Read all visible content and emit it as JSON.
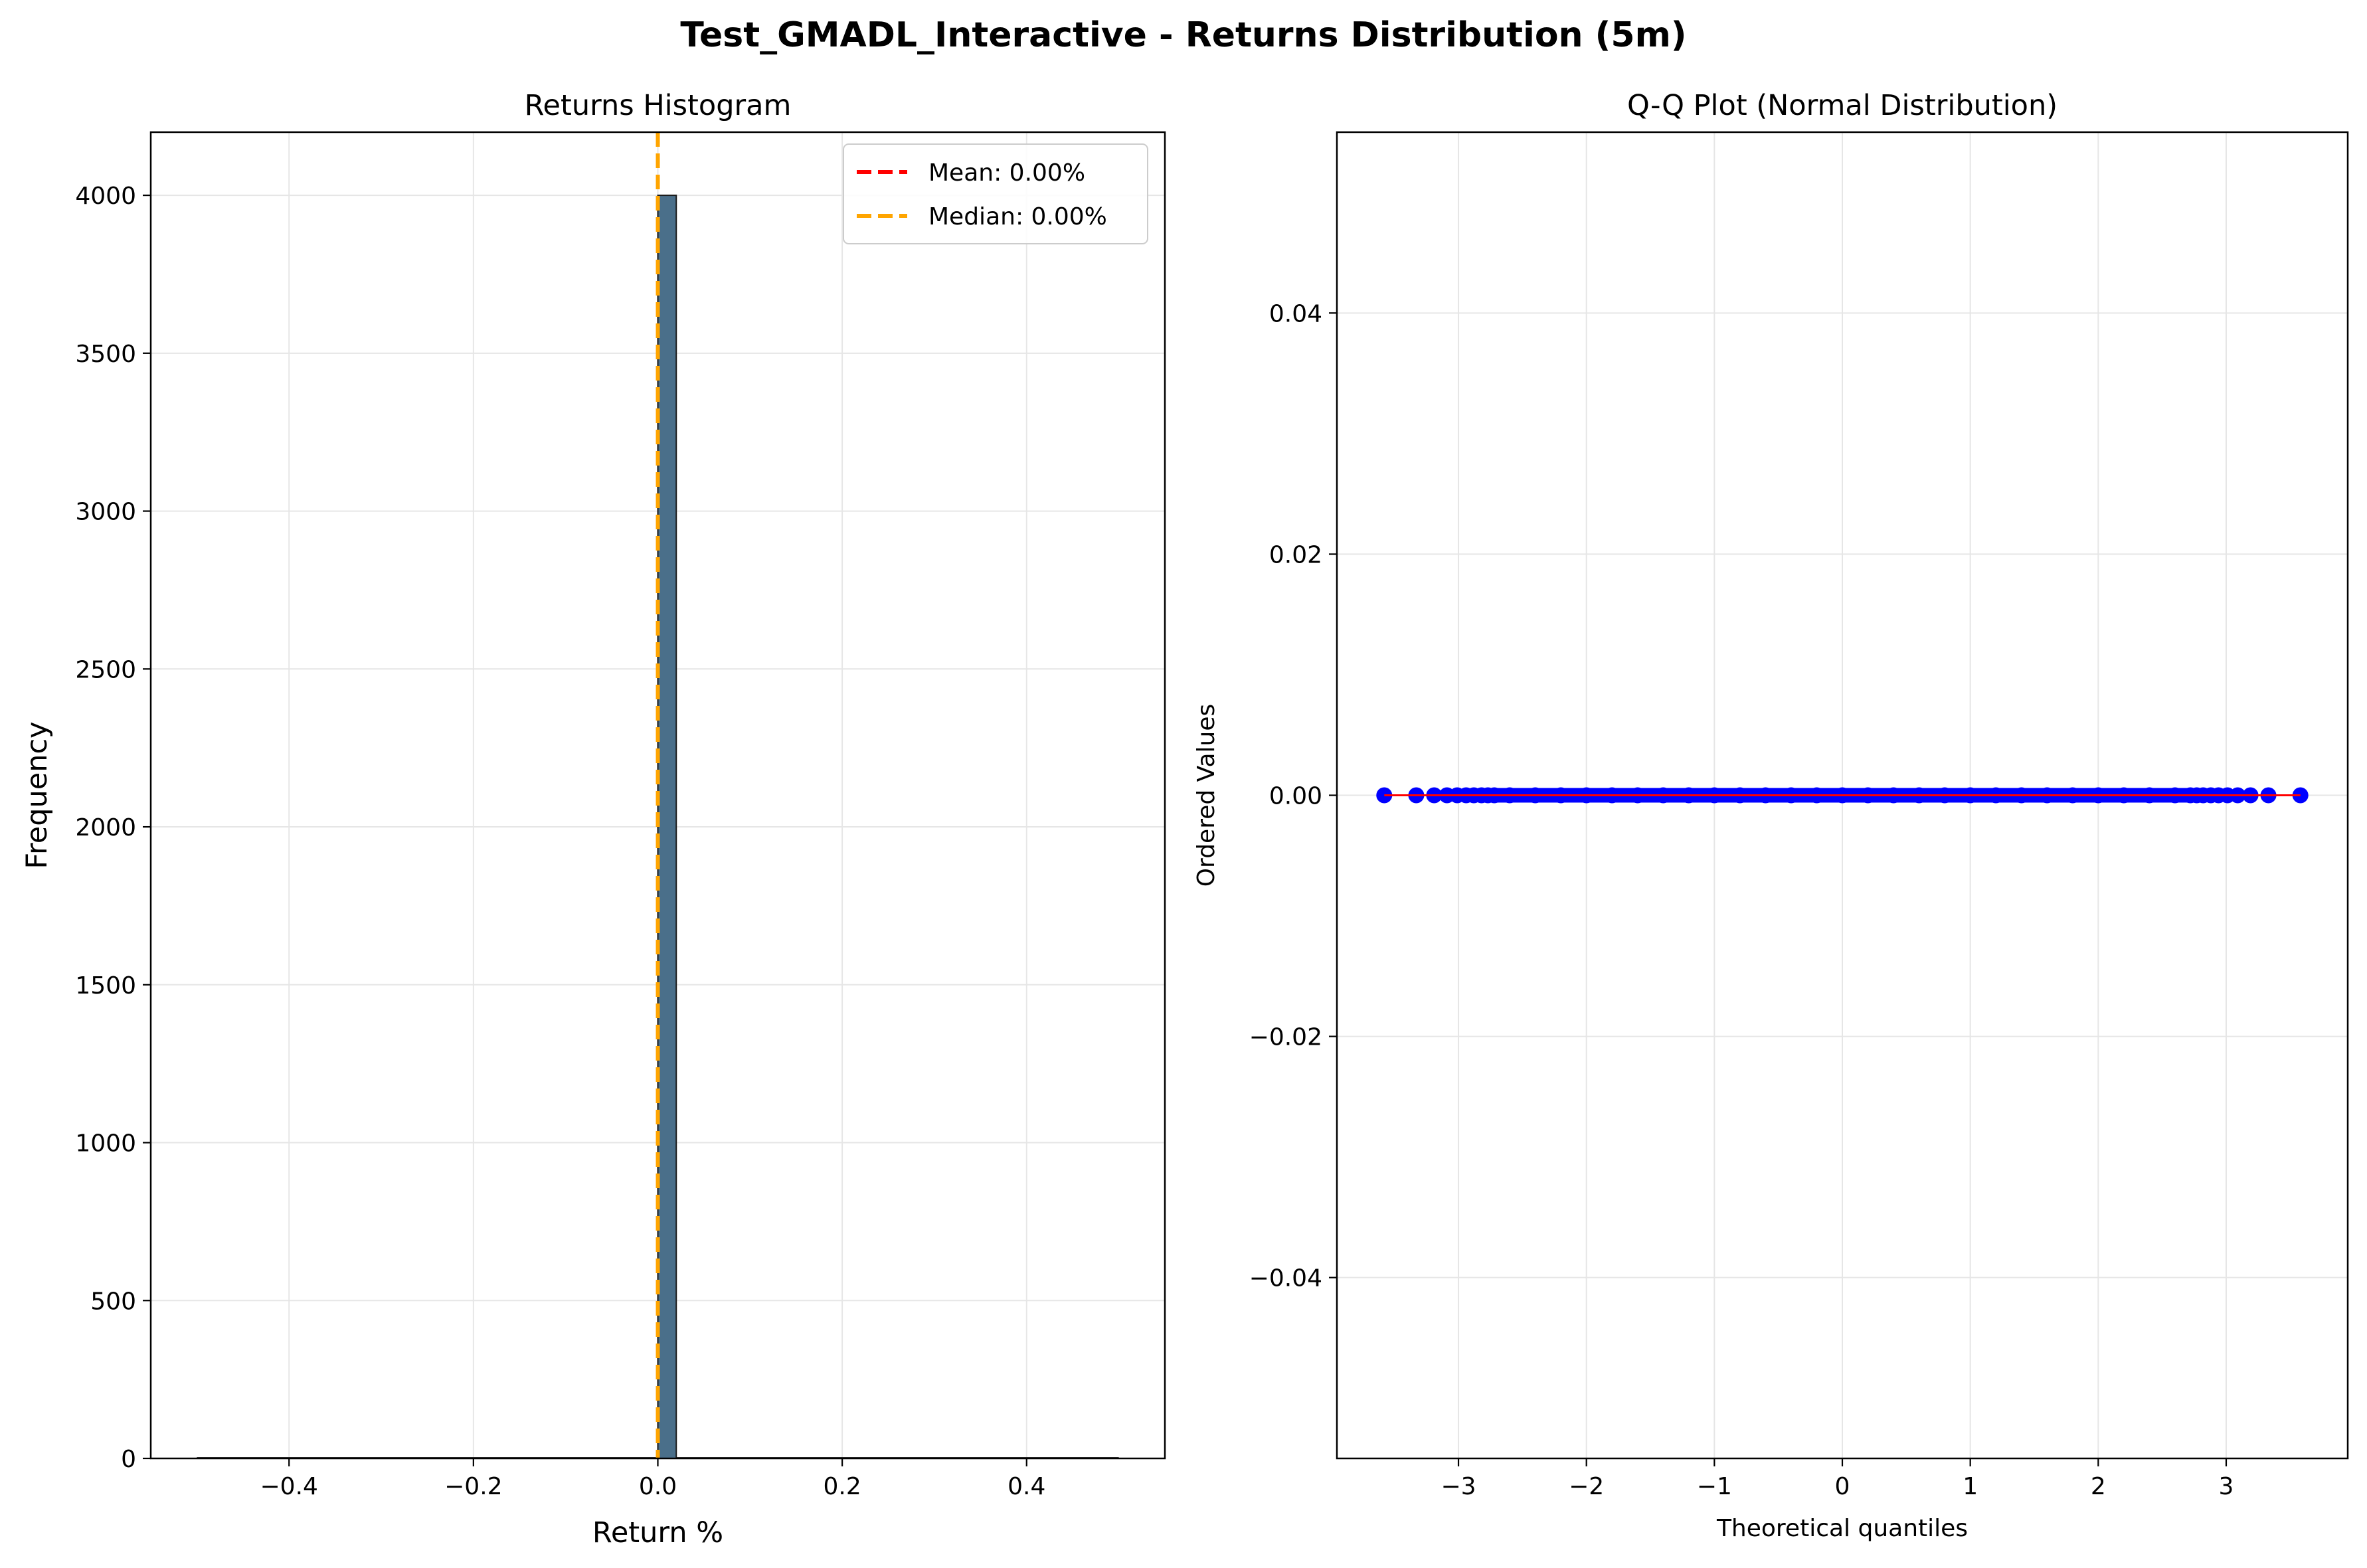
{
  "figure": {
    "title": "Test_GMADL_Interactive - Returns Distribution (5m)"
  },
  "chart_data": [
    {
      "type": "bar",
      "title": "Returns Histogram",
      "xlabel": "Return %",
      "ylabel": "Frequency",
      "xlim": [
        -0.55,
        0.55
      ],
      "ylim": [
        0,
        4200
      ],
      "xticks": [
        -0.4,
        -0.2,
        0.0,
        0.2,
        0.4
      ],
      "xtick_labels": [
        "−0.4",
        "−0.2",
        "0.0",
        "0.2",
        "0.4"
      ],
      "yticks": [
        0,
        500,
        1000,
        1500,
        2000,
        2500,
        3000,
        3500,
        4000
      ],
      "ytick_labels": [
        "0",
        "500",
        "1000",
        "1500",
        "2000",
        "2500",
        "3000",
        "3500",
        "4000"
      ],
      "grid": true,
      "bins": [
        {
          "x0": 0.0,
          "x1": 0.02,
          "count": 4000
        }
      ],
      "bar_color": "#4a6f8a",
      "range_line": [
        -0.5,
        0.5
      ],
      "vlines": [
        {
          "label": "Mean: 0.00%",
          "x": 0.0,
          "color": "#ff0000",
          "style": "dashed"
        },
        {
          "label": "Median: 0.00%",
          "x": 0.0,
          "color": "#ffa500",
          "style": "dashed"
        }
      ],
      "legend_position": "top-right"
    },
    {
      "type": "scatter",
      "title": "Q-Q Plot (Normal Distribution)",
      "xlabel": "Theoretical quantiles",
      "ylabel": "Ordered Values",
      "xlim": [
        -3.95,
        3.95
      ],
      "ylim": [
        -0.055,
        0.055
      ],
      "xticks": [
        -3,
        -2,
        -1,
        0,
        1,
        2,
        3
      ],
      "xtick_labels": [
        "−3",
        "−2",
        "−1",
        "0",
        "1",
        "2",
        "3"
      ],
      "yticks": [
        -0.04,
        -0.02,
        0.0,
        0.02,
        0.04
      ],
      "ytick_labels": [
        "−0.04",
        "−0.02",
        "0.00",
        "0.02",
        "0.04"
      ],
      "grid": true,
      "points_x": [
        -3.58,
        -3.33,
        -3.19,
        -3.09,
        -3.01,
        -2.94,
        -2.88,
        -2.82,
        -2.77,
        -2.72,
        -2.6,
        -2.4,
        -2.2,
        -2.0,
        -1.8,
        -1.6,
        -1.4,
        -1.2,
        -1.0,
        -0.8,
        -0.6,
        -0.4,
        -0.2,
        0.0,
        0.2,
        0.4,
        0.6,
        0.8,
        1.0,
        1.2,
        1.4,
        1.6,
        1.8,
        2.0,
        2.2,
        2.4,
        2.6,
        2.72,
        2.77,
        2.82,
        2.88,
        2.94,
        3.01,
        3.09,
        3.19,
        3.33,
        3.58
      ],
      "points_y": 0.0,
      "point_color": "#0000ff",
      "fit_line": {
        "x": [
          -3.58,
          3.58
        ],
        "y": [
          0.0,
          0.0
        ],
        "color": "#ff0000"
      }
    }
  ]
}
